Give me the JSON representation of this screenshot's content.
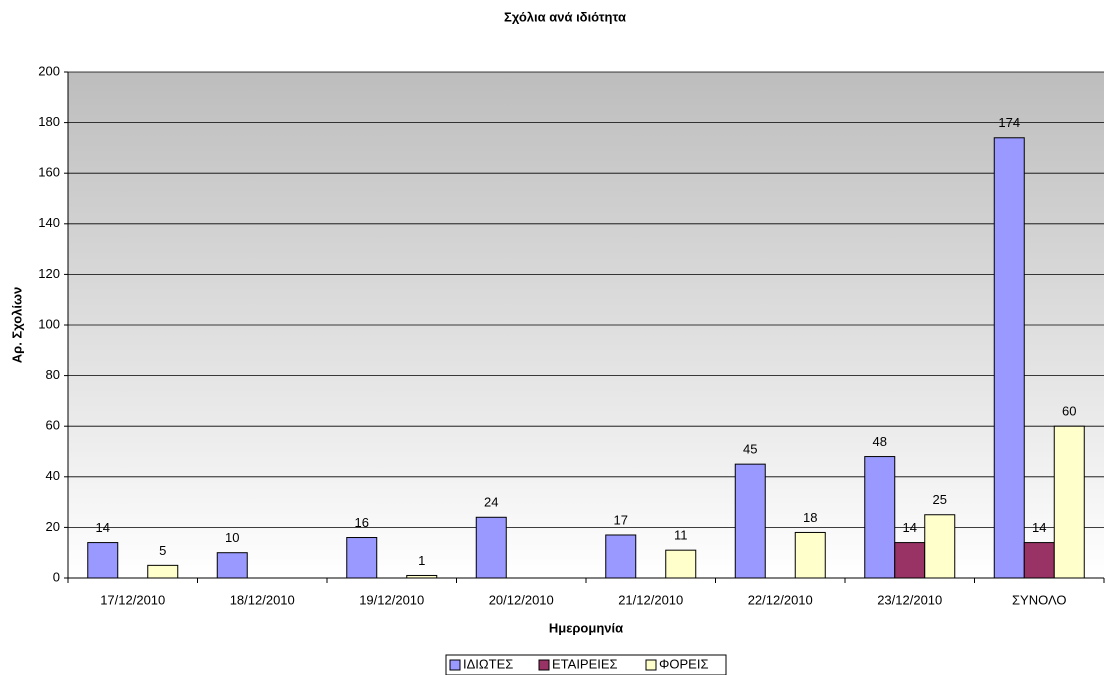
{
  "chart_data": {
    "type": "bar",
    "title": "Σχόλια ανά ιδιότητα",
    "x_label": "Ημερομηνία",
    "y_label": "Αρ. Σχολίων",
    "categories": [
      "17/12/2010",
      "18/12/2010",
      "19/12/2010",
      "20/12/2010",
      "21/12/2010",
      "22/12/2010",
      "23/12/2010",
      "ΣΥΝΟΛΟ"
    ],
    "series": [
      {
        "name": "ΙΔΙΩΤΕΣ",
        "color": "#9999ff",
        "values": [
          14,
          10,
          16,
          24,
          17,
          45,
          48,
          174
        ]
      },
      {
        "name": "ΕΤΑΙΡΕΙΕΣ",
        "color": "#993366",
        "values": [
          null,
          null,
          null,
          null,
          null,
          null,
          14,
          14
        ]
      },
      {
        "name": "ΦΟΡΕΙΣ",
        "color": "#ffffcc",
        "values": [
          5,
          null,
          1,
          null,
          11,
          18,
          25,
          60
        ]
      }
    ],
    "ylim": [
      0,
      200
    ],
    "yticks": [
      0,
      20,
      40,
      60,
      80,
      100,
      120,
      140,
      160,
      180,
      200
    ],
    "grid": true,
    "legend": "bottom"
  }
}
